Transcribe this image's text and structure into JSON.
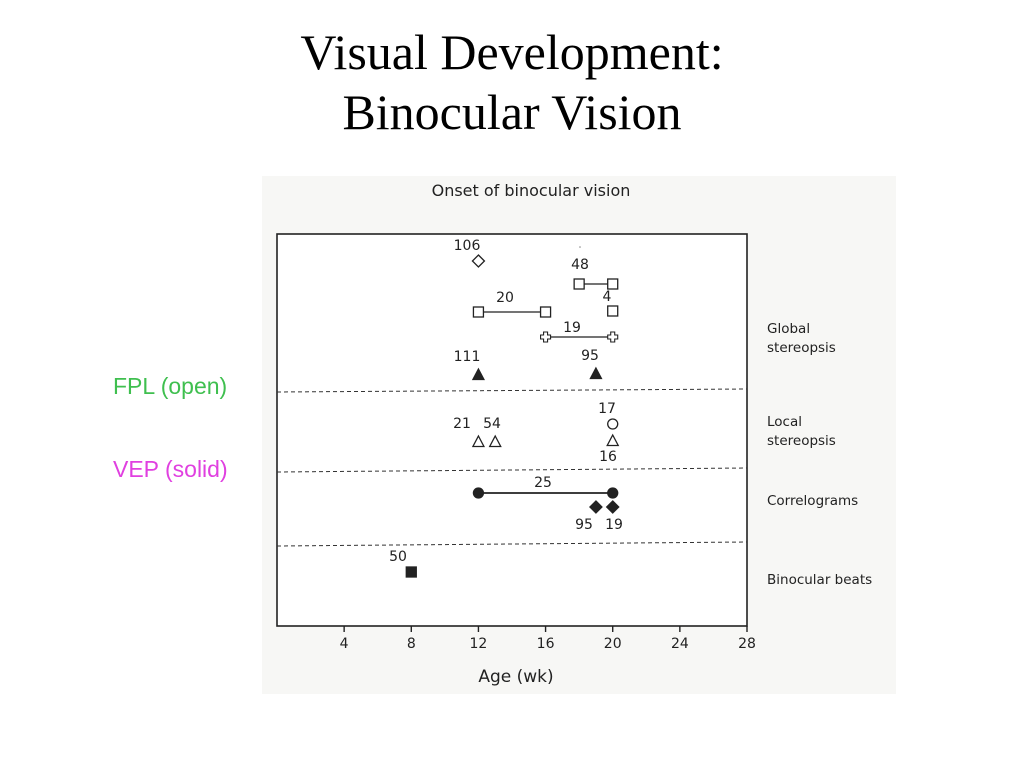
{
  "slide": {
    "title_line1": "Visual Development:",
    "title_line2": "Binocular Vision",
    "fpl_label": "FPL (open)",
    "vep_label": "VEP (solid)"
  },
  "colors": {
    "fpl": "#3fbf4f",
    "vep": "#e040e0",
    "ink": "#222222"
  },
  "chart_data": {
    "type": "scatter",
    "title": "Onset of binocular vision",
    "xlabel": "Age (wk)",
    "xlim": [
      0,
      28
    ],
    "x_ticks": [
      4,
      8,
      12,
      16,
      20,
      24,
      28
    ],
    "grid": false,
    "categories": [
      "Global stereopsis",
      "Local stereopsis",
      "Correlograms",
      "Binocular beats"
    ],
    "category_labels": [
      [
        "Global",
        "stereopsis"
      ],
      [
        "Local",
        "stereopsis"
      ],
      [
        "Correlograms"
      ],
      [
        "Binocular beats"
      ]
    ],
    "points": [
      {
        "category": "Global stereopsis",
        "x": 12,
        "marker": "diamond",
        "fill": "open",
        "label": "106"
      },
      {
        "category": "Global stereopsis",
        "x": 18,
        "x_end": 20,
        "marker": "square",
        "fill": "open",
        "label": "48",
        "range": true
      },
      {
        "category": "Global stereopsis",
        "x": 12,
        "x_end": 16,
        "marker": "square",
        "fill": "open",
        "label": "20",
        "range": true
      },
      {
        "category": "Global stereopsis",
        "x": 20,
        "marker": "square",
        "fill": "open",
        "label": "4"
      },
      {
        "category": "Global stereopsis",
        "x": 16,
        "x_end": 20,
        "marker": "cross",
        "fill": "open",
        "label": "19",
        "range": true
      },
      {
        "category": "Global stereopsis",
        "x": 12,
        "marker": "triangle",
        "fill": "solid",
        "label": "111"
      },
      {
        "category": "Global stereopsis",
        "x": 19,
        "marker": "triangle",
        "fill": "solid",
        "label": "95"
      },
      {
        "category": "Local stereopsis",
        "x": 12,
        "marker": "triangle",
        "fill": "open",
        "label": "21"
      },
      {
        "category": "Local stereopsis",
        "x": 13,
        "marker": "triangle",
        "fill": "open",
        "label": "54"
      },
      {
        "category": "Local stereopsis",
        "x": 20,
        "marker": "circle",
        "fill": "open",
        "label": "17"
      },
      {
        "category": "Local stereopsis",
        "x": 20,
        "marker": "triangle",
        "fill": "open",
        "label": "16"
      },
      {
        "category": "Correlograms",
        "x": 12,
        "x_end": 20,
        "marker": "circle",
        "fill": "solid",
        "label": "25",
        "range": true
      },
      {
        "category": "Correlograms",
        "x": 19,
        "marker": "diamond",
        "fill": "solid",
        "label": "95"
      },
      {
        "category": "Correlograms",
        "x": 20,
        "marker": "diamond",
        "fill": "solid",
        "label": "19"
      },
      {
        "category": "Binocular beats",
        "x": 8,
        "marker": "square",
        "fill": "solid",
        "label": "50"
      }
    ]
  }
}
